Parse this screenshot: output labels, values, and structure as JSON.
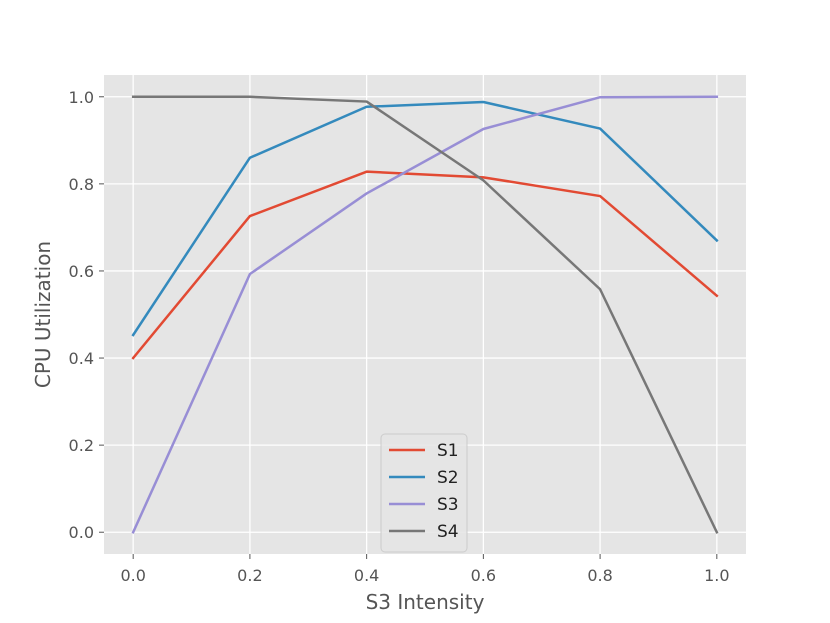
{
  "chart_data": {
    "type": "line",
    "title": "",
    "xlabel": "S3 Intensity",
    "ylabel": "CPU Utilization",
    "xlim": [
      -0.05,
      1.05
    ],
    "ylim": [
      -0.05,
      1.05
    ],
    "x": [
      0.0,
      0.2,
      0.4,
      0.6,
      0.8,
      1.0
    ],
    "x_ticks": [
      "0.0",
      "0.2",
      "0.4",
      "0.6",
      "0.8",
      "1.0"
    ],
    "y_ticks": [
      "0.0",
      "0.2",
      "0.4",
      "0.6",
      "0.8",
      "1.0"
    ],
    "grid": true,
    "legend_position": "lower-center",
    "series": [
      {
        "name": "S1",
        "color": "#E24A33",
        "values": [
          0.4,
          0.726,
          0.828,
          0.815,
          0.772,
          0.543
        ]
      },
      {
        "name": "S2",
        "color": "#348ABD",
        "values": [
          0.453,
          0.86,
          0.977,
          0.988,
          0.927,
          0.67
        ]
      },
      {
        "name": "S3",
        "color": "#988ED5",
        "values": [
          0.0,
          0.593,
          0.778,
          0.926,
          0.999,
          1.0
        ]
      },
      {
        "name": "S4",
        "color": "#777777",
        "values": [
          1.0,
          1.0,
          0.989,
          0.808,
          0.558,
          0.0
        ]
      }
    ],
    "colors": {
      "plot_background": "#E5E5E5",
      "grid": "#FFFFFF"
    }
  }
}
